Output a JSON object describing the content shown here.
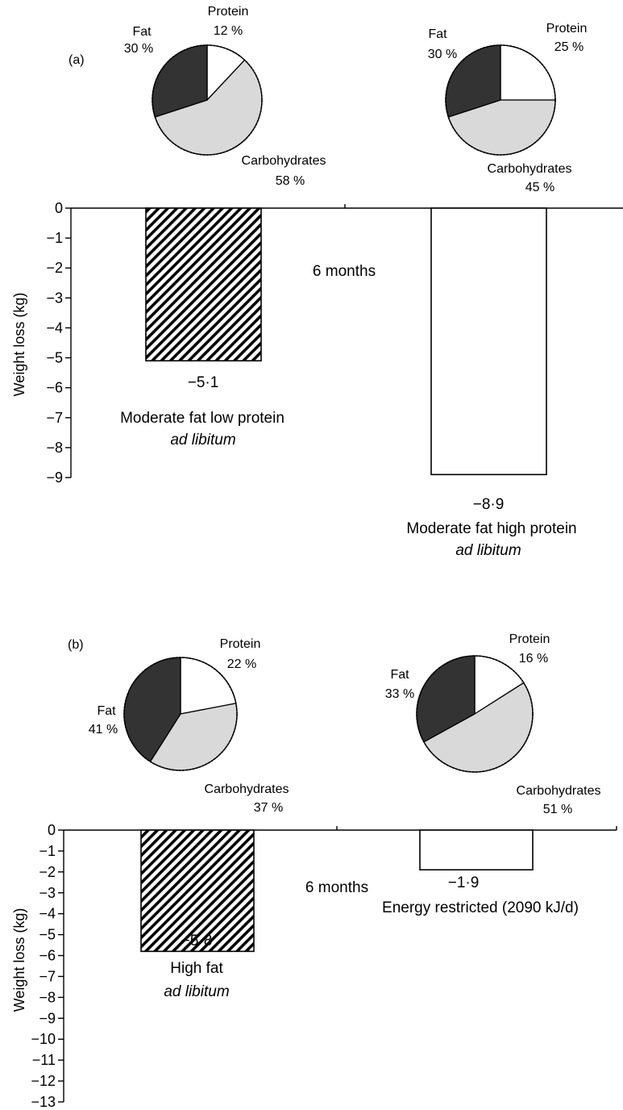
{
  "colors": {
    "fat": "#333333",
    "protein": "#ffffff",
    "carbohydrates": "#d9d9d9",
    "outline": "#000000",
    "hatched_bar": "striped",
    "plain_bar": "#ffffff"
  },
  "chart_data": [
    {
      "type": "bar",
      "panel_label": "(a)",
      "ylabel": "Weight loss (kg)",
      "ylim": [
        -9,
        0
      ],
      "yticks": [
        "0",
        "−1",
        "−2",
        "−3",
        "−4",
        "−5",
        "−6",
        "−7",
        "−8",
        "−9"
      ],
      "annotation": "6 months",
      "bars": [
        {
          "name": "Moderate fat low protein",
          "subname": "ad libitum",
          "value": -5.1,
          "value_label": "−5·1",
          "fill": "hatched"
        },
        {
          "name": "Moderate fat high protein",
          "subname": "ad libitum",
          "value": -8.9,
          "value_label": "−8·9",
          "fill": "white"
        }
      ],
      "pies": [
        {
          "slices": [
            {
              "name": "Protein",
              "value": 12,
              "label": "12 %"
            },
            {
              "name": "Carbohydrates",
              "value": 58,
              "label": "58 %"
            },
            {
              "name": "Fat",
              "value": 30,
              "label": "30 %"
            }
          ]
        },
        {
          "slices": [
            {
              "name": "Protein",
              "value": 25,
              "label": "25 %"
            },
            {
              "name": "Carbohydrates",
              "value": 45,
              "label": "45 %"
            },
            {
              "name": "Fat",
              "value": 30,
              "label": "30 %"
            }
          ]
        }
      ]
    },
    {
      "type": "bar",
      "panel_label": "(b)",
      "ylabel": "Weight loss (kg)",
      "ylim": [
        -13,
        0
      ],
      "yticks": [
        "0",
        "−1",
        "−2",
        "−3",
        "−4",
        "−5",
        "−6",
        "−7",
        "−8",
        "−9",
        "−10",
        "−11",
        "−12",
        "−13"
      ],
      "annotation": "6 months",
      "bars": [
        {
          "name": "High fat",
          "subname": "ad libitum",
          "value": -5.8,
          "value_label": "−5·8",
          "fill": "hatched"
        },
        {
          "name": "Energy restricted (2090 kJ/d)",
          "subname": "",
          "value": -1.9,
          "value_label": "−1·9",
          "fill": "white"
        }
      ],
      "pies": [
        {
          "slices": [
            {
              "name": "Protein",
              "value": 22,
              "label": "22 %"
            },
            {
              "name": "Carbohydrates",
              "value": 37,
              "label": "37 %"
            },
            {
              "name": "Fat",
              "value": 41,
              "label": "41 %"
            }
          ]
        },
        {
          "slices": [
            {
              "name": "Protein",
              "value": 16,
              "label": "16 %"
            },
            {
              "name": "Carbohydrates",
              "value": 51,
              "label": "51 %"
            },
            {
              "name": "Fat",
              "value": 33,
              "label": "33 %"
            }
          ]
        }
      ]
    }
  ]
}
